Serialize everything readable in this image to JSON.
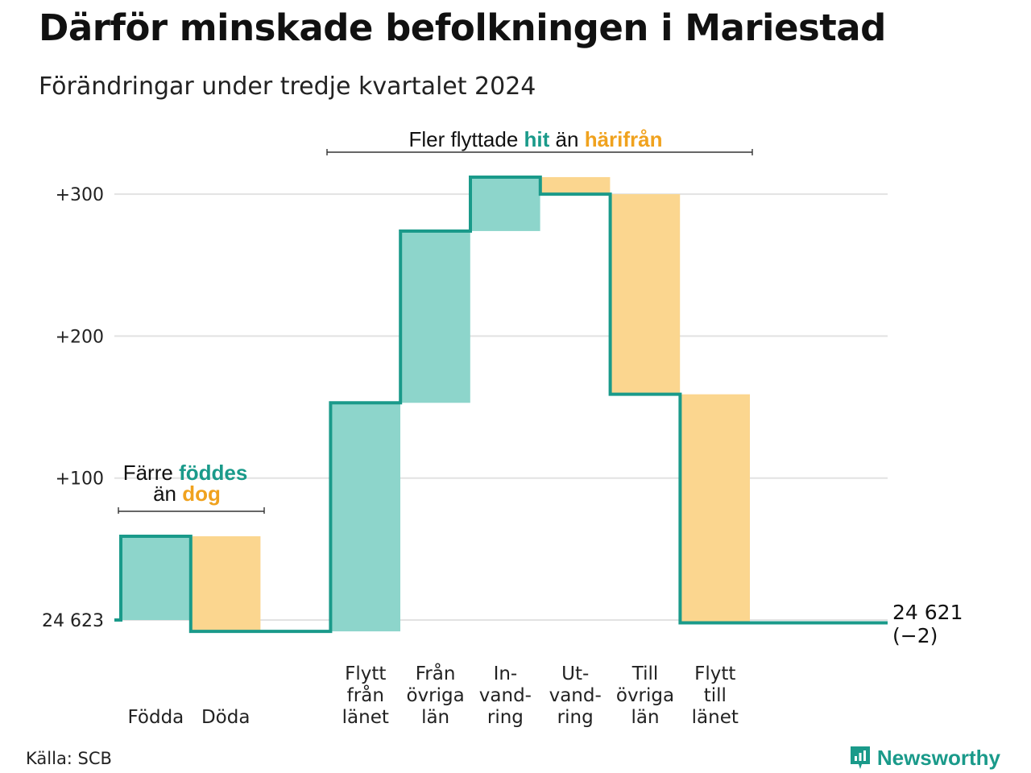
{
  "header": {
    "title": "Därför minskade befolkningen i Mariestad",
    "subtitle": "Förändringar under tredje kvartalet 2024"
  },
  "colors": {
    "increase": "#8dd5cb",
    "decrease": "#fbd68f",
    "line": "#1a9a8a",
    "accent_in": "#1a9a8a",
    "accent_out": "#f0a21e",
    "grid": "#e2e2e2"
  },
  "annotations": {
    "birth_death": {
      "line1_prefix": "Färre",
      "line1_key": "föddes",
      "line2_prefix": "än",
      "line2_key": "dog"
    },
    "migration": {
      "prefix": "Fler flyttade",
      "key_in": "hit",
      "middle": "än",
      "key_out": "härifrån"
    }
  },
  "chart_data": {
    "type": "waterfall",
    "baseline_label": "24 623",
    "start_value": 0,
    "ylim": [
      -10,
      320
    ],
    "yticks": [
      {
        "value": 0,
        "label": "24 623"
      },
      {
        "value": 100,
        "label": "+100"
      },
      {
        "value": 200,
        "label": "+200"
      },
      {
        "value": 300,
        "label": "+300"
      }
    ],
    "steps": [
      {
        "label_lines": [
          "Födda"
        ],
        "delta": 59,
        "kind": "increase"
      },
      {
        "label_lines": [
          "Döda"
        ],
        "delta": -67,
        "kind": "decrease"
      },
      {
        "label_lines": [
          "Flytt",
          "från",
          "länet"
        ],
        "delta": 161,
        "kind": "increase"
      },
      {
        "label_lines": [
          "Från",
          "övriga",
          "län"
        ],
        "delta": 121,
        "kind": "increase"
      },
      {
        "label_lines": [
          "In-",
          "vand-",
          "ring"
        ],
        "delta": 38,
        "kind": "increase"
      },
      {
        "label_lines": [
          "Ut-",
          "vand-",
          "ring"
        ],
        "delta": -12,
        "kind": "decrease"
      },
      {
        "label_lines": [
          "Till",
          "övriga",
          "län"
        ],
        "delta": -141,
        "kind": "decrease"
      },
      {
        "label_lines": [
          "Flytt",
          "till",
          "länet"
        ],
        "delta": -161,
        "kind": "decrease"
      }
    ],
    "end": {
      "value": -2,
      "label": "24 621",
      "change_label": "(−2)"
    }
  },
  "footer": {
    "source": "Källa: SCB",
    "brand": "Newsworthy"
  }
}
